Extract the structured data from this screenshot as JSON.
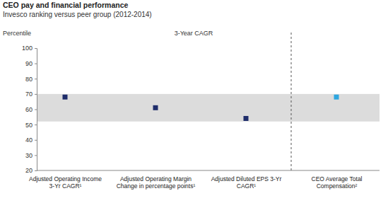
{
  "chart_data": {
    "type": "scatter",
    "title": "CEO pay and financial performance",
    "subtitle": "Invesco ranking versus peer group (2012-2014)",
    "y_label": "Percentile",
    "annotation": "3-Year CAGR",
    "categories": [
      "Adjusted Operating Income 3-Yr CAGR¹",
      "Adjusted Operating Margin Change in percentage points¹",
      "Adjusted Diluted EPS 3-Yr CAGR¹",
      "CEO Average Total Compensation²"
    ],
    "values": [
      68,
      61,
      54,
      68
    ],
    "colors": [
      "#1f2d6b",
      "#1f2d6b",
      "#1f2d6b",
      "#2ea6df"
    ],
    "marker": "square",
    "band": [
      52,
      70
    ],
    "ylim": [
      20,
      100
    ],
    "yticks": [
      20,
      30,
      40,
      50,
      60,
      70,
      80,
      90,
      100
    ],
    "grid": false
  }
}
